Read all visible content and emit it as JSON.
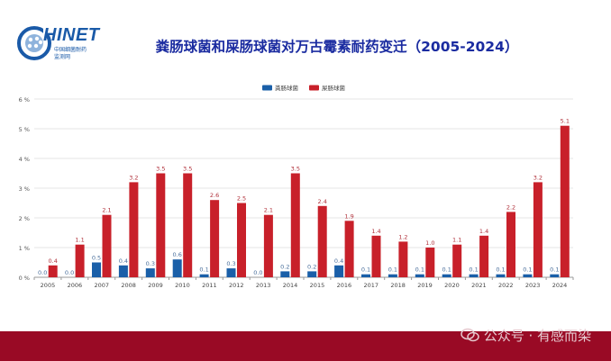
{
  "header": {
    "logo_text": "HINET",
    "logo_sub1": "中国细菌耐药",
    "logo_sub2": "监测网",
    "title": "粪肠球菌和屎肠球菌对万古霉素耐药变迁（2005-2024）"
  },
  "watermark": {
    "text": "公众号 · 有感而染"
  },
  "chart_data": {
    "type": "bar",
    "categories": [
      "2005",
      "2006",
      "2007",
      "2008",
      "2009",
      "2010",
      "2011",
      "2012",
      "2013",
      "2014",
      "2015",
      "2016",
      "2017",
      "2018",
      "2019",
      "2020",
      "2021",
      "2022",
      "2023",
      "2024"
    ],
    "series": [
      {
        "name": "粪肠球菌",
        "color": "#1a5fa8",
        "values": [
          0.0,
          0.0,
          0.5,
          0.4,
          0.3,
          0.6,
          0.1,
          0.3,
          0.0,
          0.2,
          0.2,
          0.4,
          0.1,
          0.1,
          0.1,
          0.1,
          0.1,
          0.1,
          0.1,
          0.1
        ]
      },
      {
        "name": "屎肠球菌",
        "color": "#c8202a",
        "values": [
          0.4,
          1.1,
          2.1,
          3.2,
          3.5,
          3.5,
          2.6,
          2.5,
          2.1,
          3.5,
          2.4,
          1.9,
          1.4,
          1.2,
          1.0,
          1.1,
          1.4,
          2.2,
          3.2,
          5.1
        ]
      }
    ],
    "ylim": [
      0,
      6
    ],
    "yticks": [
      "0 %",
      "1 %",
      "2 %",
      "3 %",
      "4 %",
      "5 %",
      "6 %"
    ],
    "legend_position": "top-center",
    "grid": true
  }
}
